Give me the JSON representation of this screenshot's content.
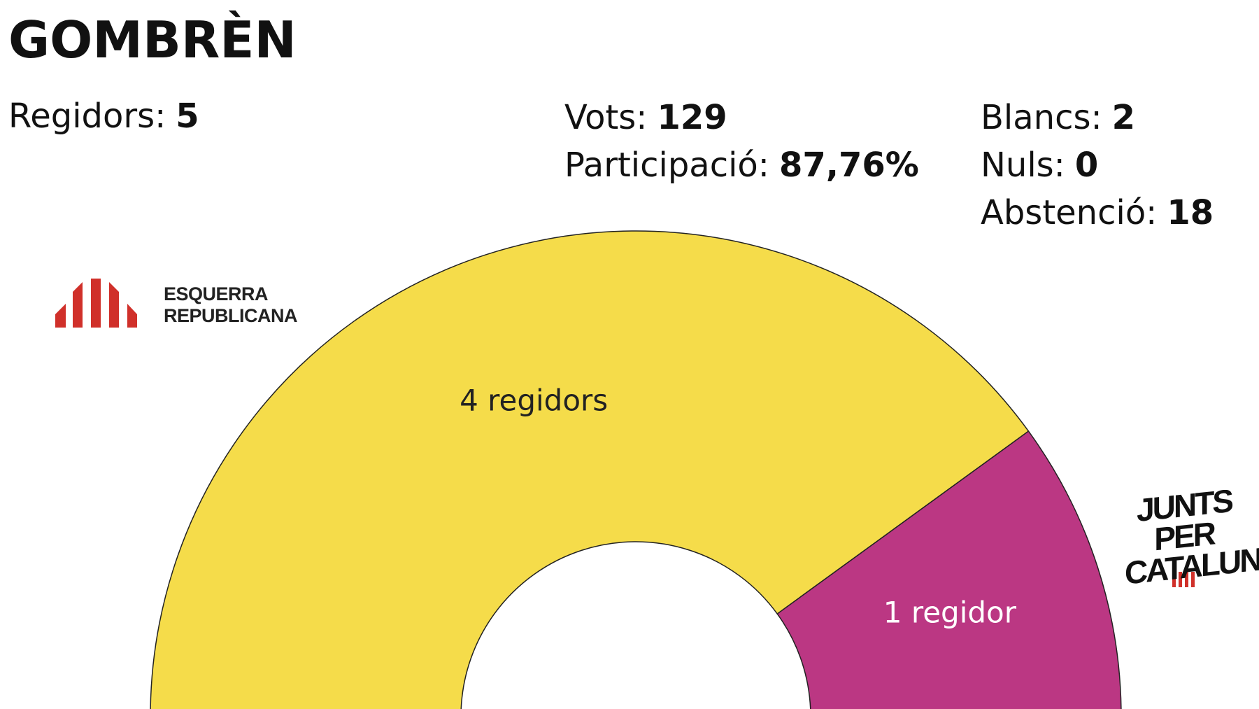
{
  "chart_data": {
    "type": "semidonut",
    "title": "GOMBRÈN",
    "categories": [
      "ESQUERRA REPUBLICANA",
      "JUNTS PER CATALUNYA"
    ],
    "values": [
      4,
      1
    ],
    "value_labels": [
      "4 regidors",
      "1 regidor"
    ],
    "colors": [
      "#f5dc4a",
      "#bb3783"
    ],
    "stats": [
      {
        "label": "Regidors:",
        "value": 5
      },
      {
        "label": "Vots:",
        "value": 129
      },
      {
        "label": "Participació:",
        "value": 87.76,
        "value_label": "87,76%"
      },
      {
        "label": "Blancs:",
        "value": 2
      },
      {
        "label": "Nuls:",
        "value": 0
      },
      {
        "label": "Abstenció:",
        "value": 18
      }
    ]
  }
}
